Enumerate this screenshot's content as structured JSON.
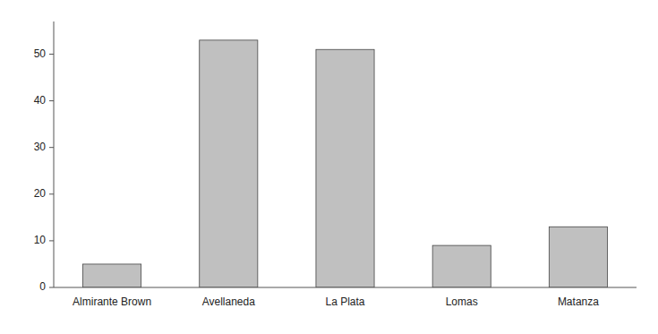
{
  "chart_data": {
    "type": "bar",
    "categories": [
      "Almirante Brown",
      "Avellaneda",
      "La Plata",
      "Lomas",
      "Matanza"
    ],
    "values": [
      5,
      53,
      51,
      9,
      13
    ],
    "color": "#c0c0c0",
    "ylim": [
      0,
      57
    ],
    "yticks": [
      0,
      10,
      20,
      30,
      40,
      50
    ],
    "grid": false
  }
}
